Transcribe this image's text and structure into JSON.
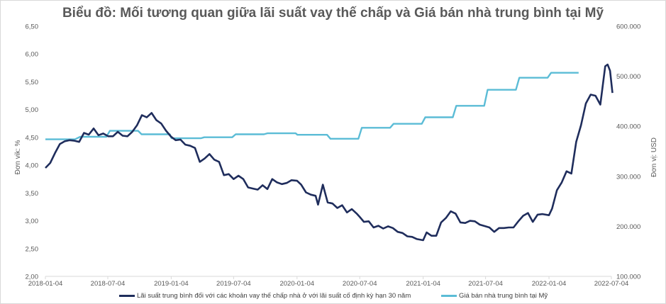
{
  "chart_data": {
    "type": "line",
    "title": "Biểu đồ: Mối tương quan giữa lãi suất vay thế chấp và Giá bán nhà trung bình tại Mỹ",
    "xlabel": "",
    "ylabel_left": "Đơn vik: %",
    "ylabel_right": "Đơn vị: USD",
    "x_ticks": [
      "2018-01-04",
      "2018-07-04",
      "2019-01-04",
      "2019-07-04",
      "2020-01-04",
      "2020-07-04",
      "2021-01-04",
      "2021-07-04",
      "2022-01-04",
      "2022-07-04"
    ],
    "y_left_ticks": [
      "6,50",
      "6,00",
      "5,50",
      "5,00",
      "4,50",
      "4,00",
      "3,50",
      "3,00",
      "2,50",
      "2,00"
    ],
    "y_right_ticks": [
      "600.000",
      "500.000",
      "400.000",
      "300.000",
      "200.000",
      "100.000"
    ],
    "ylim_left": [
      2.0,
      6.5
    ],
    "ylim_right": [
      100000,
      600000
    ],
    "grid": false,
    "legend_position": "bottom",
    "series": [
      {
        "name": "Lãi suất trung bình đối với các khoản vay thế chấp nhà ở với lãi suất cố định kỳ hạn 30 năm",
        "axis": "left",
        "color": "#1f2d5c",
        "points": [
          [
            "2018-01-04",
            3.95
          ],
          [
            "2018-01-18",
            4.04
          ],
          [
            "2018-02-01",
            4.22
          ],
          [
            "2018-02-15",
            4.38
          ],
          [
            "2018-03-01",
            4.43
          ],
          [
            "2018-03-15",
            4.45
          ],
          [
            "2018-03-29",
            4.44
          ],
          [
            "2018-04-12",
            4.42
          ],
          [
            "2018-04-26",
            4.58
          ],
          [
            "2018-05-10",
            4.55
          ],
          [
            "2018-05-24",
            4.66
          ],
          [
            "2018-06-07",
            4.54
          ],
          [
            "2018-06-21",
            4.57
          ],
          [
            "2018-07-05",
            4.52
          ],
          [
            "2018-07-19",
            4.52
          ],
          [
            "2018-08-02",
            4.6
          ],
          [
            "2018-08-16",
            4.53
          ],
          [
            "2018-08-30",
            4.52
          ],
          [
            "2018-09-13",
            4.6
          ],
          [
            "2018-09-27",
            4.72
          ],
          [
            "2018-10-11",
            4.9
          ],
          [
            "2018-10-25",
            4.86
          ],
          [
            "2018-11-08",
            4.94
          ],
          [
            "2018-11-22",
            4.81
          ],
          [
            "2018-12-06",
            4.75
          ],
          [
            "2018-12-20",
            4.62
          ],
          [
            "2019-01-04",
            4.51
          ],
          [
            "2019-01-17",
            4.45
          ],
          [
            "2019-01-31",
            4.46
          ],
          [
            "2019-02-14",
            4.37
          ],
          [
            "2019-02-28",
            4.35
          ],
          [
            "2019-03-14",
            4.31
          ],
          [
            "2019-03-28",
            4.06
          ],
          [
            "2019-04-11",
            4.12
          ],
          [
            "2019-04-25",
            4.2
          ],
          [
            "2019-05-09",
            4.1
          ],
          [
            "2019-05-23",
            4.06
          ],
          [
            "2019-06-06",
            3.82
          ],
          [
            "2019-06-20",
            3.84
          ],
          [
            "2019-07-04",
            3.75
          ],
          [
            "2019-07-18",
            3.81
          ],
          [
            "2019-08-01",
            3.75
          ],
          [
            "2019-08-15",
            3.6
          ],
          [
            "2019-08-29",
            3.58
          ],
          [
            "2019-09-12",
            3.56
          ],
          [
            "2019-09-26",
            3.64
          ],
          [
            "2019-10-10",
            3.57
          ],
          [
            "2019-10-24",
            3.75
          ],
          [
            "2019-11-07",
            3.69
          ],
          [
            "2019-11-21",
            3.66
          ],
          [
            "2019-12-05",
            3.68
          ],
          [
            "2019-12-19",
            3.73
          ],
          [
            "2020-01-04",
            3.72
          ],
          [
            "2020-01-16",
            3.65
          ],
          [
            "2020-01-30",
            3.51
          ],
          [
            "2020-02-13",
            3.47
          ],
          [
            "2020-02-27",
            3.45
          ],
          [
            "2020-03-05",
            3.29
          ],
          [
            "2020-03-19",
            3.65
          ],
          [
            "2020-04-02",
            3.33
          ],
          [
            "2020-04-16",
            3.31
          ],
          [
            "2020-04-30",
            3.23
          ],
          [
            "2020-05-14",
            3.28
          ],
          [
            "2020-05-28",
            3.15
          ],
          [
            "2020-06-11",
            3.21
          ],
          [
            "2020-06-25",
            3.13
          ],
          [
            "2020-07-04",
            3.07
          ],
          [
            "2020-07-16",
            2.98
          ],
          [
            "2020-07-30",
            2.99
          ],
          [
            "2020-08-13",
            2.88
          ],
          [
            "2020-08-27",
            2.91
          ],
          [
            "2020-09-10",
            2.86
          ],
          [
            "2020-09-24",
            2.9
          ],
          [
            "2020-10-08",
            2.87
          ],
          [
            "2020-10-22",
            2.8
          ],
          [
            "2020-11-05",
            2.78
          ],
          [
            "2020-11-19",
            2.72
          ],
          [
            "2020-12-03",
            2.71
          ],
          [
            "2020-12-17",
            2.67
          ],
          [
            "2021-01-04",
            2.65
          ],
          [
            "2021-01-14",
            2.79
          ],
          [
            "2021-01-28",
            2.73
          ],
          [
            "2021-02-11",
            2.73
          ],
          [
            "2021-02-25",
            2.97
          ],
          [
            "2021-03-11",
            3.05
          ],
          [
            "2021-03-25",
            3.17
          ],
          [
            "2021-04-08",
            3.13
          ],
          [
            "2021-04-22",
            2.97
          ],
          [
            "2021-05-06",
            2.96
          ],
          [
            "2021-05-20",
            3.0
          ],
          [
            "2021-06-03",
            2.99
          ],
          [
            "2021-06-17",
            2.93
          ],
          [
            "2021-07-04",
            2.9
          ],
          [
            "2021-07-15",
            2.88
          ],
          [
            "2021-07-29",
            2.8
          ],
          [
            "2021-08-12",
            2.87
          ],
          [
            "2021-08-26",
            2.87
          ],
          [
            "2021-09-09",
            2.88
          ],
          [
            "2021-09-23",
            2.88
          ],
          [
            "2021-10-07",
            2.99
          ],
          [
            "2021-10-21",
            3.09
          ],
          [
            "2021-11-04",
            3.14
          ],
          [
            "2021-11-18",
            2.98
          ],
          [
            "2021-12-02",
            3.11
          ],
          [
            "2021-12-16",
            3.12
          ],
          [
            "2022-01-04",
            3.1
          ],
          [
            "2022-01-13",
            3.22
          ],
          [
            "2022-01-27",
            3.55
          ],
          [
            "2022-02-10",
            3.69
          ],
          [
            "2022-02-24",
            3.89
          ],
          [
            "2022-03-10",
            3.85
          ],
          [
            "2022-03-24",
            4.42
          ],
          [
            "2022-04-07",
            4.72
          ],
          [
            "2022-04-21",
            5.11
          ],
          [
            "2022-05-05",
            5.27
          ],
          [
            "2022-05-19",
            5.25
          ],
          [
            "2022-06-02",
            5.09
          ],
          [
            "2022-06-16",
            5.78
          ],
          [
            "2022-06-23",
            5.81
          ],
          [
            "2022-06-30",
            5.7
          ],
          [
            "2022-07-07",
            5.3
          ]
        ]
      },
      {
        "name": "Giá bán nhà trung bình tại Mỹ",
        "axis": "right",
        "color": "#5bbcd6",
        "type": "step",
        "points": [
          [
            "2018-01-04",
            374000
          ],
          [
            "2018-03-31",
            374000
          ],
          [
            "2018-04-15",
            379000
          ],
          [
            "2018-06-30",
            379000
          ],
          [
            "2018-07-10",
            391000
          ],
          [
            "2018-09-30",
            391000
          ],
          [
            "2018-10-10",
            384000
          ],
          [
            "2018-12-31",
            384000
          ],
          [
            "2019-01-05",
            376000
          ],
          [
            "2019-03-31",
            376000
          ],
          [
            "2019-04-10",
            378000
          ],
          [
            "2019-06-30",
            378000
          ],
          [
            "2019-07-10",
            384000
          ],
          [
            "2019-09-30",
            384000
          ],
          [
            "2019-10-10",
            386000
          ],
          [
            "2019-12-31",
            386000
          ],
          [
            "2020-01-05",
            383000
          ],
          [
            "2020-03-31",
            383000
          ],
          [
            "2020-04-10",
            375000
          ],
          [
            "2020-06-30",
            375000
          ],
          [
            "2020-07-10",
            397000
          ],
          [
            "2020-09-30",
            397000
          ],
          [
            "2020-10-10",
            405000
          ],
          [
            "2020-12-31",
            405000
          ],
          [
            "2021-01-10",
            418000
          ],
          [
            "2021-03-31",
            418000
          ],
          [
            "2021-04-10",
            441000
          ],
          [
            "2021-06-30",
            441000
          ],
          [
            "2021-07-10",
            473000
          ],
          [
            "2021-09-30",
            473000
          ],
          [
            "2021-10-10",
            497000
          ],
          [
            "2021-12-31",
            497000
          ],
          [
            "2022-01-10",
            507000
          ],
          [
            "2022-03-31",
            507000
          ]
        ]
      }
    ]
  },
  "legend": {
    "rate_label": "Lãi suất trung bình đối với các khoản vay thế chấp nhà ở với lãi suất cố định kỳ hạn 30 năm",
    "price_label": "Giá bán nhà trung bình tại Mỹ"
  }
}
